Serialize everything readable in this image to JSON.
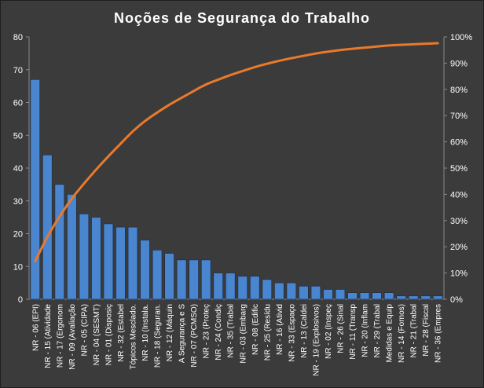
{
  "chart_data": {
    "type": "bar",
    "title": "Noções de Segurança do Trabalho",
    "xlabel": "",
    "ylabel": "",
    "ylim": [
      0,
      80
    ],
    "y_ticks": [
      "0",
      "10",
      "20",
      "30",
      "40",
      "50",
      "60",
      "70",
      "80"
    ],
    "y2lim": [
      0,
      100
    ],
    "y2_ticks": [
      "0%",
      "10%",
      "20%",
      "30%",
      "40%",
      "50%",
      "60%",
      "70%",
      "80%",
      "90%",
      "100%"
    ],
    "grid": false,
    "legend": "none",
    "categories": [
      "NR - 06 (EPI)",
      "NR - 15 (Atividade",
      "NR - 17 (Ergonom",
      "NR - 09 (Avaliação",
      "NR - 05 (CIPA)",
      "NR - 04 (SESMT)",
      "NR - 01 (Disposiç",
      "NR - 32 (Estabel",
      "Tópicos Mesclado.",
      "NR - 10 (Instala.",
      "NR - 18 (Seguran.",
      "NR - 12 (Máquin",
      "A Segurança e S",
      "NR - 07 (PCMSO)",
      "NR - 23 (Proteç",
      "NR - 24 (Condiç",
      "NR - 35 (Trabal",
      "NR - 03 (Embarg",
      "NR - 08 (Edific",
      "NR - 25 (Resídu",
      "NR - 16 (Ativid",
      "NR - 33 (Espaço",
      "NR - 13 (Caldei",
      "NR - 19 (Explosivos)",
      "NR - 02 (Inspeç",
      "NR - 26 (Sinal",
      "NR - 11 (Transp",
      "NR - 20 (Inflam",
      "NR - 29 (Trabal",
      "Medidas e Equip",
      "NR - 14 (Fornos)",
      "NR - 21 (Trabal",
      "NR - 28 (Fiscal",
      "NR - 36 (Empres"
    ],
    "series": [
      {
        "kind": "bar",
        "axis": "left",
        "values": [
          67,
          44,
          35,
          32,
          26,
          25,
          23,
          22,
          22,
          18,
          15,
          14,
          12,
          12,
          12,
          8,
          8,
          7,
          7,
          6,
          5,
          5,
          4,
          4,
          3,
          3,
          2,
          2,
          2,
          2,
          1,
          1,
          1,
          1
        ]
      },
      {
        "kind": "line",
        "axis": "right",
        "values": [
          0.145,
          0.24,
          0.316,
          0.385,
          0.441,
          0.495,
          0.545,
          0.593,
          0.641,
          0.68,
          0.712,
          0.742,
          0.768,
          0.794,
          0.82,
          0.837,
          0.855,
          0.87,
          0.885,
          0.898,
          0.909,
          0.919,
          0.928,
          0.937,
          0.944,
          0.95,
          0.955,
          0.959,
          0.963,
          0.968,
          0.97,
          0.972,
          0.974,
          0.976
        ]
      }
    ]
  },
  "colors": {
    "background": "#3b3b3b",
    "bar_fill": "#4a86d0",
    "bar_stroke": "#1a2a44",
    "line": "#e87a2c",
    "text": "#ffffff",
    "axis": "#8a8a8a"
  }
}
